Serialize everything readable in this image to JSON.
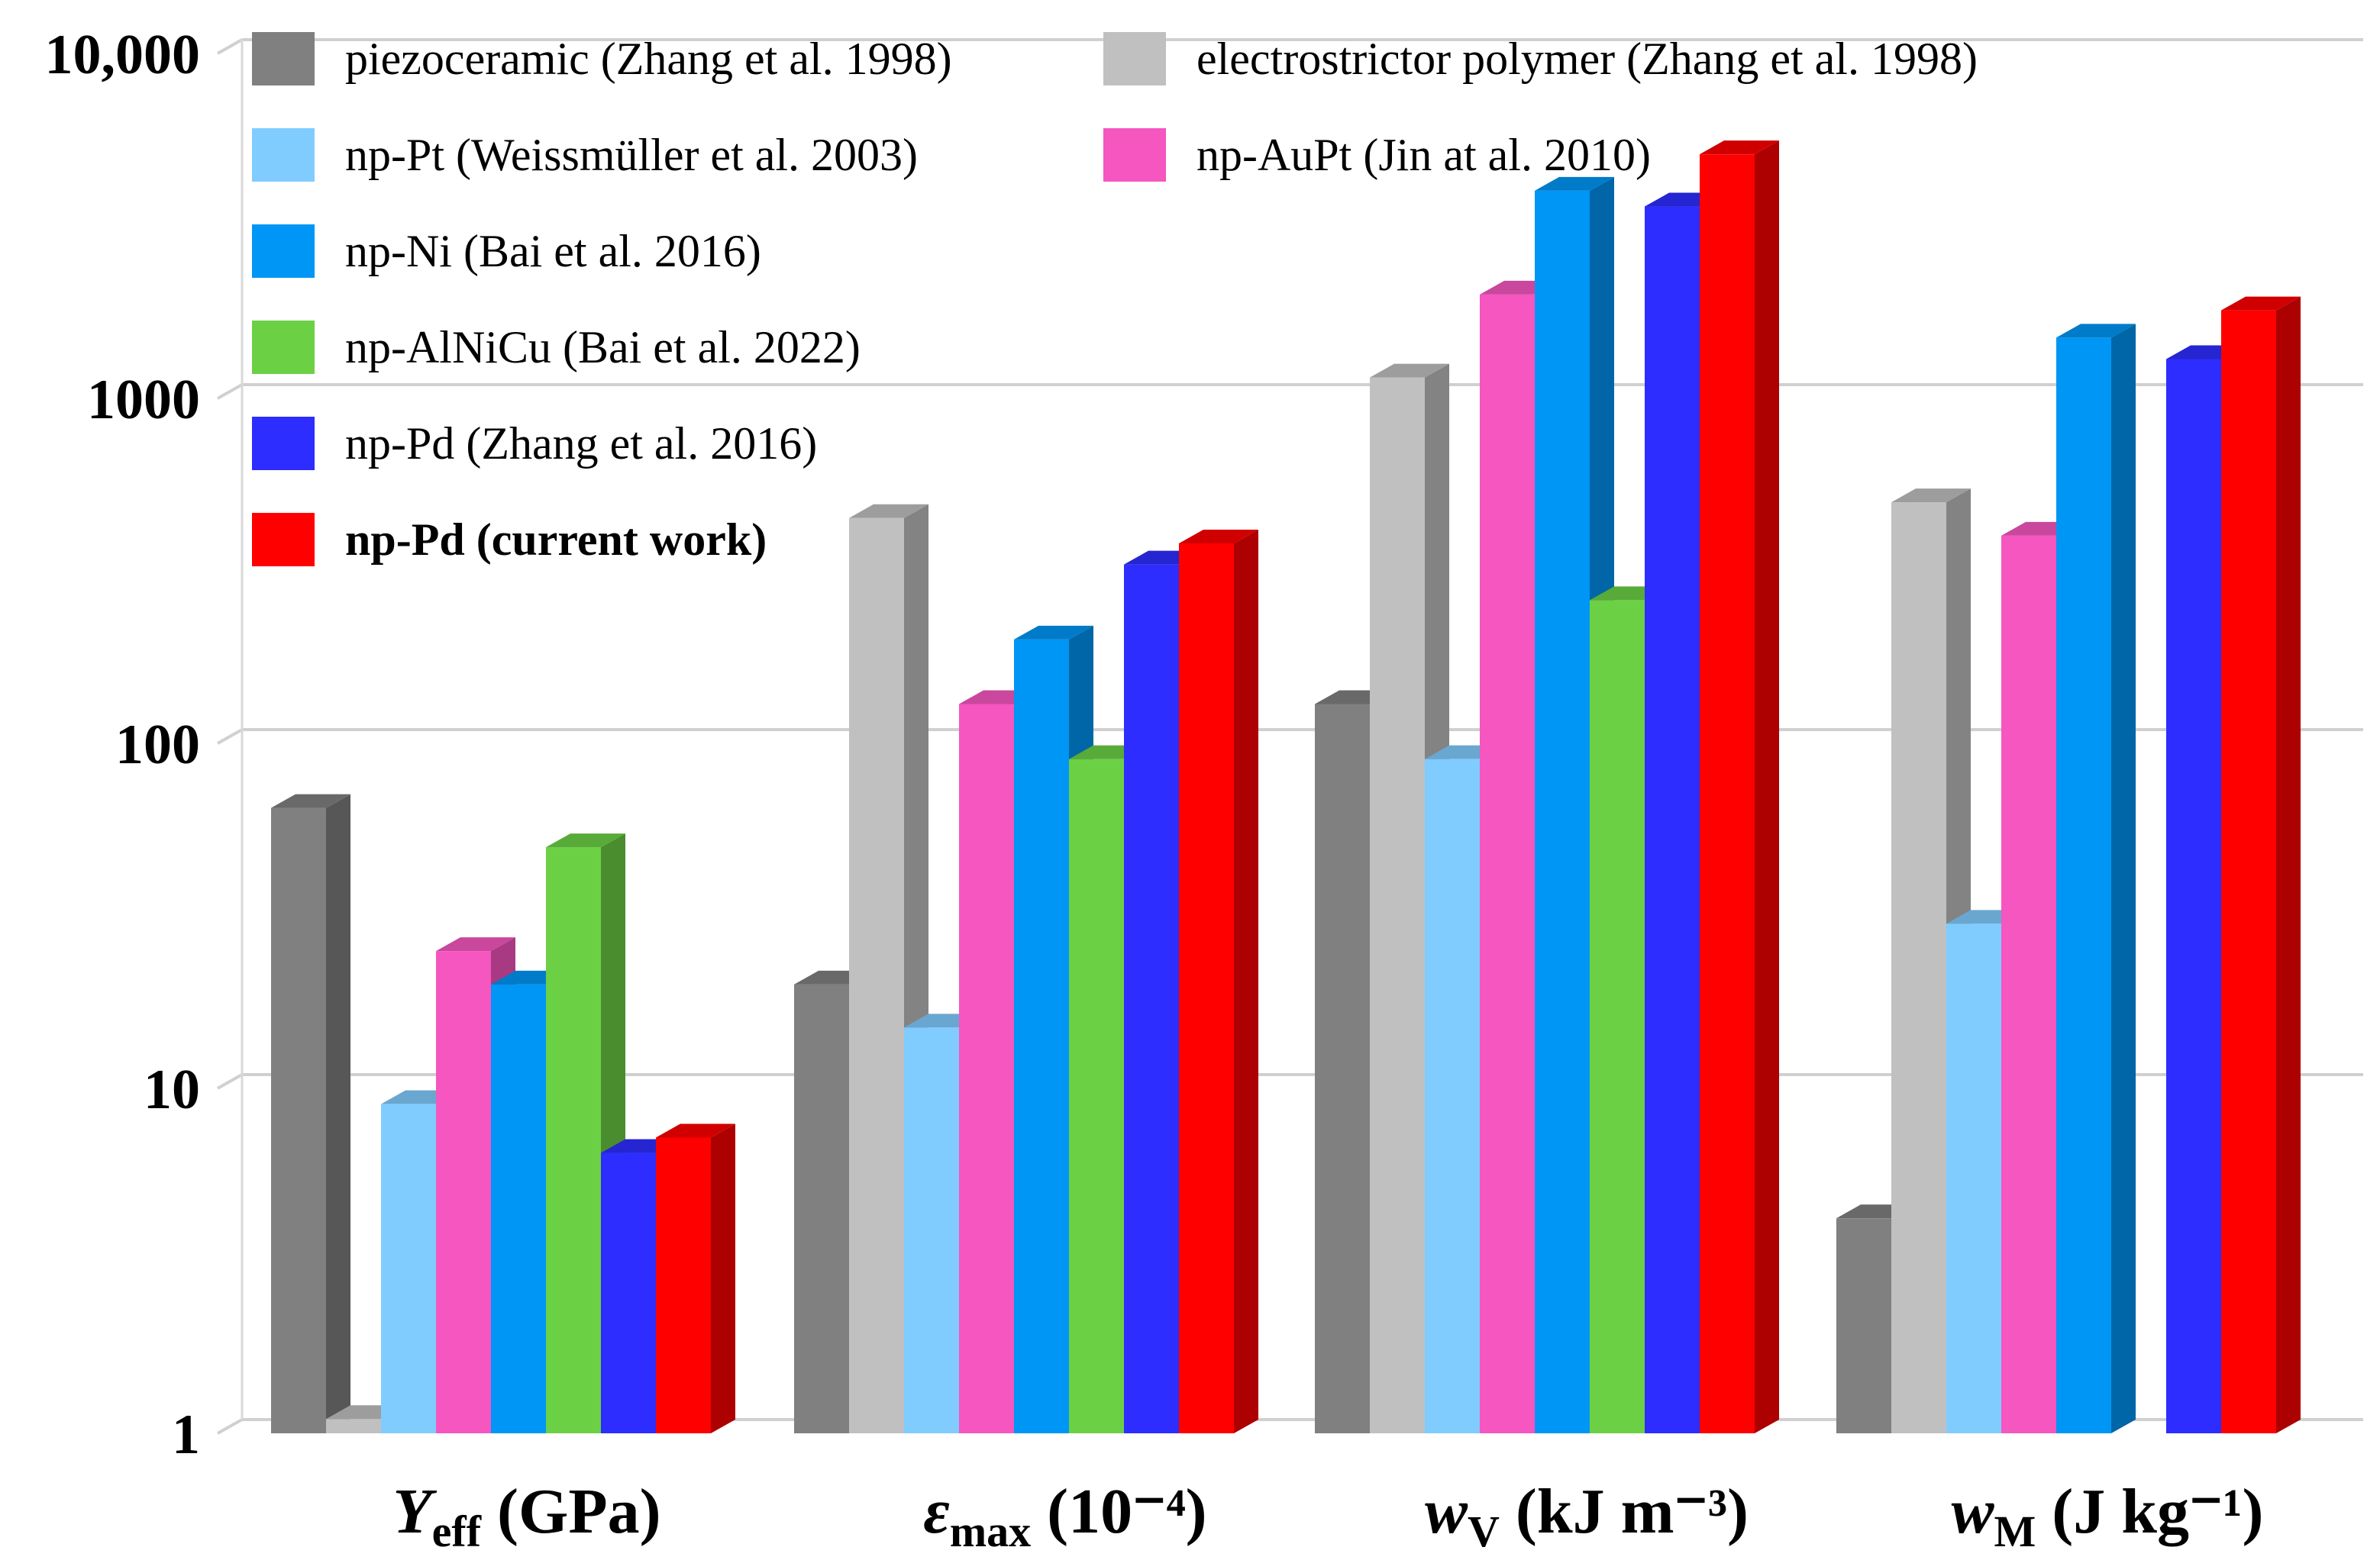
{
  "chart_data": {
    "type": "bar",
    "scale": "log",
    "ylim": [
      1,
      10000
    ],
    "y_ticks": [
      {
        "value": 1,
        "label": "1"
      },
      {
        "value": 10,
        "label": "10"
      },
      {
        "value": 100,
        "label": "100"
      },
      {
        "value": 1000,
        "label": "1000"
      },
      {
        "value": 10000,
        "label": "10,000"
      }
    ],
    "categories": [
      {
        "main": "Y",
        "sub": "eff",
        "sup": "",
        "unit": " (GPa)",
        "italic": true
      },
      {
        "main": "ε",
        "sub": "max",
        "sup": "",
        "unit": " (10⁻⁴)",
        "italic": true
      },
      {
        "main": "w",
        "sub": "V",
        "sup": "",
        "unit": " (kJ m⁻³)",
        "italic": true
      },
      {
        "main": "w",
        "sub": "M",
        "sup": "",
        "unit": " (J kg⁻¹)",
        "italic": true
      }
    ],
    "legend_position": "top-left",
    "series": [
      {
        "name": "piezoceramic (Zhang et al. 1998)",
        "color": "#808080",
        "bold": false,
        "values": [
          65,
          20,
          130,
          4.2
        ]
      },
      {
        "name": "electrostrictor polymer (Zhang et al. 1998)",
        "color": "#c0c0c0",
        "bold": false,
        "values": [
          1.1,
          450,
          1150,
          500
        ]
      },
      {
        "name": "np-Pt (Weissmüller et al. 2003)",
        "color": "#80ccff",
        "bold": false,
        "values": [
          9,
          15,
          90,
          30
        ]
      },
      {
        "name": "np-AuPt (Jin at al. 2010)",
        "color": "#f556c0",
        "bold": false,
        "values": [
          25,
          130,
          2000,
          400
        ]
      },
      {
        "name": "np-Ni (Bai et al. 2016)",
        "color": "#0096f5",
        "bold": false,
        "values": [
          20,
          200,
          4000,
          1500
        ]
      },
      {
        "name": "np-AlNiCu (Bai et al. 2022)",
        "color": "#6cd045",
        "bold": false,
        "values": [
          50,
          90,
          260,
          null
        ]
      },
      {
        "name": "np-Pd (Zhang et al. 2016)",
        "color": "#2d2dff",
        "bold": false,
        "values": [
          6.5,
          330,
          3600,
          1300
        ]
      },
      {
        "name": "np-Pd (current work)",
        "color": "#ff0000",
        "bold": true,
        "values": [
          7.2,
          380,
          5100,
          1800
        ]
      }
    ]
  }
}
